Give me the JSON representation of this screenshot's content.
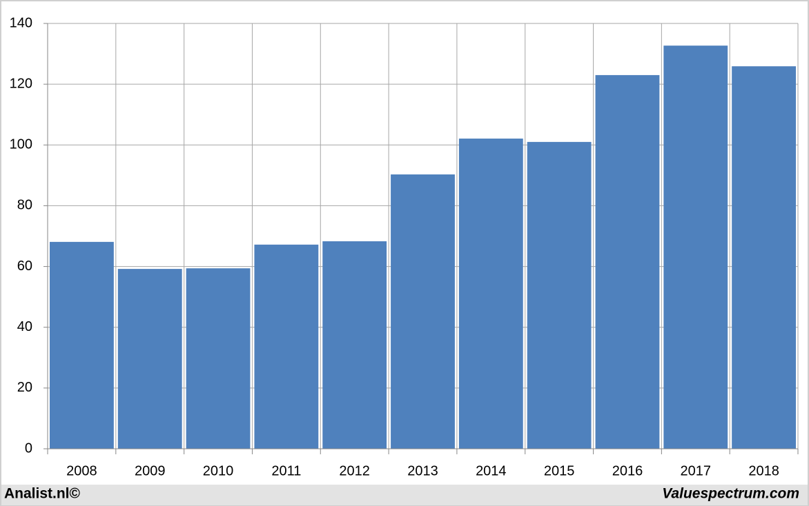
{
  "chart_data": {
    "type": "bar",
    "categories": [
      "2008",
      "2009",
      "2010",
      "2011",
      "2012",
      "2013",
      "2014",
      "2015",
      "2016",
      "2017",
      "2018"
    ],
    "values": [
      68.1,
      59.2,
      59.4,
      67.2,
      68.3,
      90.3,
      102.1,
      101,
      123,
      132.7,
      125.9
    ],
    "color": "#4f81bd",
    "ylim": [
      0,
      140
    ],
    "yticks": [
      0,
      20,
      40,
      60,
      80,
      100,
      120,
      140
    ],
    "grid": true,
    "annotations": [
      "Analist.nl©",
      "Valuespectrum.com"
    ]
  }
}
